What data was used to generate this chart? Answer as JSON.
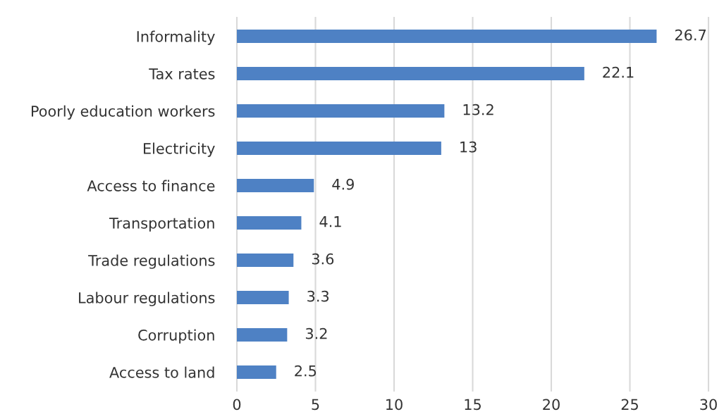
{
  "chart_data": {
    "type": "bar",
    "orientation": "horizontal",
    "categories": [
      "Informality",
      "Tax rates",
      "Poorly education workers",
      "Electricity",
      "Access to finance",
      "Transportation",
      "Trade regulations",
      "Labour regulations",
      "Corruption",
      "Access to land"
    ],
    "values": [
      26.7,
      22.1,
      13.2,
      13,
      4.9,
      4.1,
      3.6,
      3.3,
      3.2,
      2.5
    ],
    "color": "#4e81c4",
    "xlim": [
      0,
      30
    ],
    "xticks": [
      0,
      5,
      10,
      15,
      20,
      25,
      30
    ],
    "grid": "x",
    "data_labels": true
  }
}
